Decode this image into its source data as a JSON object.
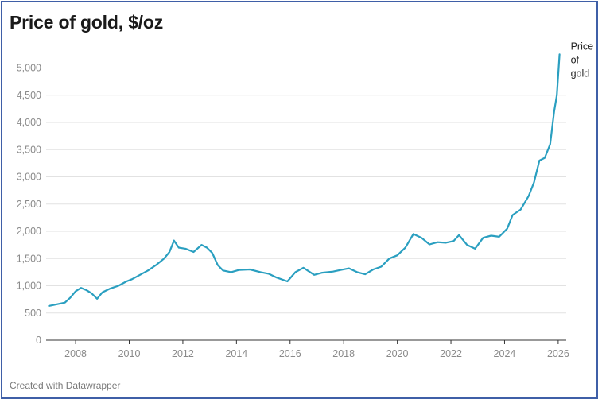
{
  "title": "Price of gold, $/oz",
  "footer": "Created with Datawrapper",
  "chart_data": {
    "type": "line",
    "title": "Price of gold, $/oz",
    "xlabel": "",
    "ylabel": "",
    "xlim": [
      2006.9,
      2026.3
    ],
    "ylim": [
      0,
      5300
    ],
    "grid": true,
    "legend": "direct label at line end",
    "y_ticks": [
      {
        "value": 0,
        "label": "0"
      },
      {
        "value": 500,
        "label": "500"
      },
      {
        "value": 1000,
        "label": "1,000"
      },
      {
        "value": 1500,
        "label": "1,500"
      },
      {
        "value": 2000,
        "label": "2,000"
      },
      {
        "value": 2500,
        "label": "2,500"
      },
      {
        "value": 3000,
        "label": "3,000"
      },
      {
        "value": 3500,
        "label": "3,500"
      },
      {
        "value": 4000,
        "label": "4,000"
      },
      {
        "value": 4500,
        "label": "4,500"
      },
      {
        "value": 5000,
        "label": "5,000"
      }
    ],
    "x_ticks": [
      {
        "value": 2008,
        "label": "2008"
      },
      {
        "value": 2010,
        "label": "2010"
      },
      {
        "value": 2012,
        "label": "2012"
      },
      {
        "value": 2014,
        "label": "2014"
      },
      {
        "value": 2016,
        "label": "2016"
      },
      {
        "value": 2018,
        "label": "2018"
      },
      {
        "value": 2020,
        "label": "2020"
      },
      {
        "value": 2022,
        "label": "2022"
      },
      {
        "value": 2024,
        "label": "2024"
      },
      {
        "value": 2026,
        "label": "2026"
      }
    ],
    "series": [
      {
        "name": "Price\nof\ngold",
        "color": "#2a9fc0",
        "x": [
          2007.0,
          2007.3,
          2007.6,
          2007.8,
          2008.0,
          2008.2,
          2008.4,
          2008.6,
          2008.8,
          2009.0,
          2009.3,
          2009.6,
          2009.9,
          2010.1,
          2010.4,
          2010.7,
          2011.0,
          2011.3,
          2011.5,
          2011.67,
          2011.85,
          2012.1,
          2012.4,
          2012.7,
          2012.9,
          2013.1,
          2013.3,
          2013.5,
          2013.8,
          2014.1,
          2014.5,
          2014.9,
          2015.2,
          2015.5,
          2015.9,
          2016.2,
          2016.5,
          2016.9,
          2017.2,
          2017.6,
          2017.9,
          2018.2,
          2018.5,
          2018.8,
          2019.1,
          2019.4,
          2019.7,
          2020.0,
          2020.3,
          2020.6,
          2020.9,
          2021.2,
          2021.5,
          2021.8,
          2022.1,
          2022.3,
          2022.6,
          2022.9,
          2023.2,
          2023.5,
          2023.8,
          2024.1,
          2024.3,
          2024.6,
          2024.9,
          2025.1,
          2025.3,
          2025.5,
          2025.7,
          2025.85,
          2025.95,
          2026.05
        ],
        "values": [
          630,
          660,
          690,
          780,
          900,
          960,
          920,
          860,
          760,
          880,
          950,
          1000,
          1080,
          1120,
          1200,
          1280,
          1380,
          1500,
          1620,
          1830,
          1700,
          1680,
          1620,
          1750,
          1700,
          1600,
          1380,
          1280,
          1250,
          1290,
          1300,
          1250,
          1220,
          1150,
          1080,
          1250,
          1330,
          1200,
          1240,
          1260,
          1290,
          1320,
          1250,
          1210,
          1300,
          1350,
          1500,
          1560,
          1700,
          1950,
          1880,
          1760,
          1800,
          1790,
          1820,
          1930,
          1750,
          1680,
          1880,
          1920,
          1900,
          2050,
          2300,
          2400,
          2650,
          2900,
          3300,
          3350,
          3600,
          4200,
          4500,
          5250
        ]
      }
    ]
  }
}
